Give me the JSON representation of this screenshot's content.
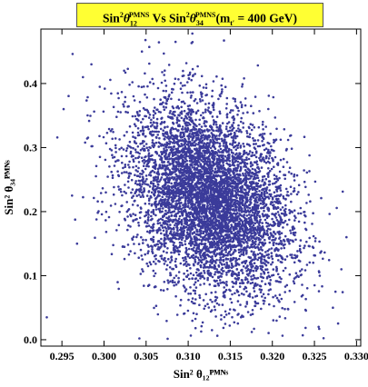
{
  "chart_data": {
    "type": "scatter",
    "title": "Sin²θ₁₂ᴾᴹᴺˢ Vs Sin²θ₃₄ᴾᴹᴺˢ(m_t′ = 400 GeV)",
    "title_parts": {
      "a": "Sin",
      "b": "2",
      "c": "θ",
      "d": "12",
      "e": "PMNS",
      "f": " Vs ",
      "g": "(m",
      "h": "t′",
      "i": " = 400 GeV)",
      "j": "34"
    },
    "xlabel": "Sin² θ₁₂ᴾᴹᴺˢ",
    "ylabel": "Sin² θ₃₄ᴾᴹᴺˢ",
    "xlim": [
      0.2925,
      0.3305
    ],
    "ylim": [
      -0.01,
      0.485
    ],
    "x_ticks": [
      "0.295",
      "0.300",
      "0.305",
      "0.310",
      "0.315",
      "0.320",
      "0.325",
      "0.330"
    ],
    "y_ticks": [
      "0.0",
      "0.1",
      "0.2",
      "0.3",
      "0.4"
    ],
    "point_color": "#3b3b9a",
    "series": [
      {
        "points_summary": "dense cloud of ~6000 points centered near x=0.312, y=0.22; negative correlation",
        "x_center": 0.3125,
        "x_std": 0.0048,
        "y_center": 0.22,
        "y_std": 0.075,
        "n": 6000,
        "outliers": [
          [
            0.2932,
            0.035
          ],
          [
            0.2952,
            0.36
          ],
          [
            0.2962,
            0.225
          ],
          [
            0.2975,
            0.41
          ],
          [
            0.2985,
            0.43
          ],
          [
            0.2968,
            0.15
          ],
          [
            0.3042,
            0.002
          ],
          [
            0.3085,
            0.465
          ],
          [
            0.3105,
            0.478
          ],
          [
            0.3282,
            0.11
          ],
          [
            0.3288,
            0.16
          ],
          [
            0.3272,
            0.05
          ],
          [
            0.3255,
            0.02
          ],
          [
            0.3275,
            0.075
          ],
          [
            0.3045,
            0.45
          ],
          [
            0.2995,
            0.395
          ]
        ]
      }
    ],
    "grid": false
  }
}
